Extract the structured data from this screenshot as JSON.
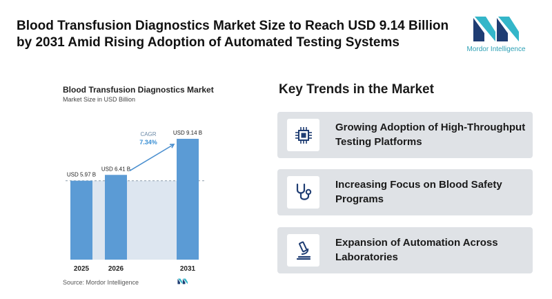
{
  "headline": "Blood Transfusion Diagnostics Market Size to Reach USD 9.14 Billion by 2031 Amid Rising Adoption of Automated Testing Systems",
  "logo": {
    "text": "Mordor Intelligence",
    "icon": "mordor-intelligence-logo"
  },
  "chart_data": {
    "type": "bar",
    "title": "Blood Transfusion Diagnostics Market",
    "subtitle": "Market Size in USD Billion",
    "categories": [
      "2025",
      "2026",
      "2031"
    ],
    "values": [
      5.97,
      6.41,
      9.14
    ],
    "value_labels": [
      "USD 5.97 B",
      "USD 6.41 B",
      "USD 9.14 B"
    ],
    "ylim": [
      0,
      9.14
    ],
    "cagr": {
      "label": "CAGR",
      "value": "7.34%"
    },
    "source": "Source: Mordor Intelligence",
    "colors": {
      "bar": "#5b9bd5",
      "shade": "#dde6f0",
      "arrow": "#4a8fcf",
      "cagr_value": "#3a8fd4"
    }
  },
  "trends": {
    "heading": "Key Trends in the Market",
    "items": [
      {
        "label": "Growing Adoption of High-Throughput Testing Platforms",
        "icon": "processor-chip-icon"
      },
      {
        "label": "Increasing Focus on Blood Safety Programs",
        "icon": "stethoscope-icon"
      },
      {
        "label": "Expansion of Automation Across Laboratories",
        "icon": "microscope-icon"
      }
    ]
  }
}
